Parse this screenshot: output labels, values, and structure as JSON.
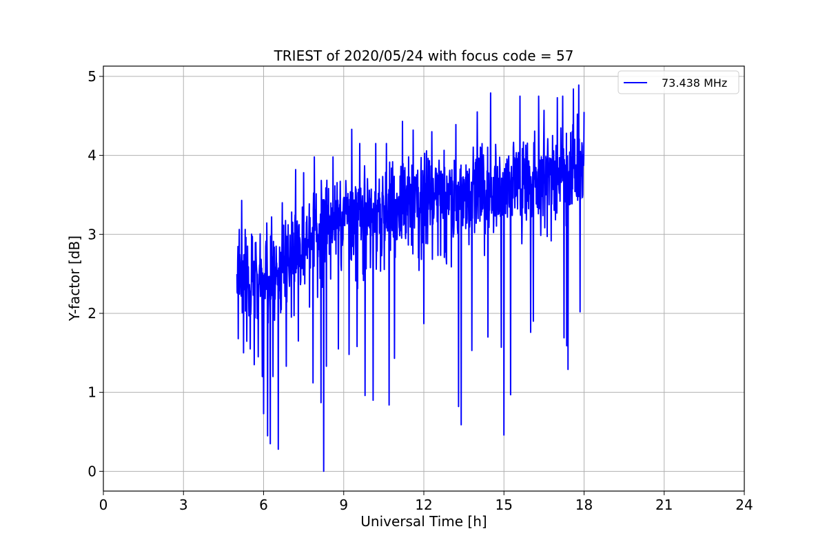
{
  "chart_data": {
    "type": "line",
    "title": "TRIEST of 2020/05/24 with focus code = 57",
    "xlabel": "Universal Time [h]",
    "ylabel": "Y-factor [dB]",
    "xlim": [
      0,
      24
    ],
    "ylim": [
      -0.25,
      5.13
    ],
    "xticks": [
      0,
      3,
      6,
      9,
      12,
      15,
      18,
      21,
      24
    ],
    "yticks": [
      0,
      1,
      2,
      3,
      4,
      5
    ],
    "grid": true,
    "legend_position": "top-right",
    "series": [
      {
        "name": "73.438 MHz",
        "color": "#0000ff",
        "x_range": [
          5.0,
          18.0
        ],
        "sample_step_h": 0.01,
        "trend": {
          "x": [
            5.0,
            6.5,
            8.0,
            9.0,
            11.0,
            12.0,
            14.0,
            16.0,
            17.0,
            18.0
          ],
          "y": [
            2.45,
            2.55,
            3.05,
            3.2,
            3.35,
            3.5,
            3.55,
            3.65,
            3.75,
            3.8
          ]
        },
        "noise_amplitude": {
          "x": [
            5.0,
            7.0,
            18.0
          ],
          "y": [
            0.7,
            0.65,
            0.7
          ]
        },
        "peaks": [
          {
            "x": 5.05,
            "y": 3.42
          },
          {
            "x": 5.18,
            "y": 3.43
          },
          {
            "x": 5.5,
            "y": 3.2
          },
          {
            "x": 6.3,
            "y": 3.22
          },
          {
            "x": 6.7,
            "y": 3.4
          },
          {
            "x": 7.2,
            "y": 3.82
          },
          {
            "x": 7.5,
            "y": 3.78
          },
          {
            "x": 7.9,
            "y": 3.98
          },
          {
            "x": 8.6,
            "y": 3.98
          },
          {
            "x": 9.3,
            "y": 4.33
          },
          {
            "x": 9.6,
            "y": 4.15
          },
          {
            "x": 10.2,
            "y": 4.15
          },
          {
            "x": 10.6,
            "y": 4.15
          },
          {
            "x": 11.2,
            "y": 4.43
          },
          {
            "x": 11.6,
            "y": 4.32
          },
          {
            "x": 12.3,
            "y": 4.3
          },
          {
            "x": 13.2,
            "y": 4.39
          },
          {
            "x": 14.0,
            "y": 4.55
          },
          {
            "x": 14.5,
            "y": 4.79
          },
          {
            "x": 14.9,
            "y": 4.4
          },
          {
            "x": 15.6,
            "y": 4.75
          },
          {
            "x": 16.3,
            "y": 4.75
          },
          {
            "x": 16.5,
            "y": 4.57
          },
          {
            "x": 17.0,
            "y": 4.73
          },
          {
            "x": 17.2,
            "y": 4.75
          },
          {
            "x": 17.4,
            "y": 4.79
          },
          {
            "x": 17.6,
            "y": 4.84
          },
          {
            "x": 17.8,
            "y": 4.89
          },
          {
            "x": 18.0,
            "y": 4.55
          }
        ],
        "dips": [
          {
            "x": 5.05,
            "y": 1.68
          },
          {
            "x": 5.25,
            "y": 1.5
          },
          {
            "x": 5.5,
            "y": 1.55
          },
          {
            "x": 5.65,
            "y": 1.35
          },
          {
            "x": 5.8,
            "y": 1.45
          },
          {
            "x": 5.95,
            "y": 1.2
          },
          {
            "x": 6.0,
            "y": 0.73
          },
          {
            "x": 6.15,
            "y": 0.45
          },
          {
            "x": 6.25,
            "y": 0.35
          },
          {
            "x": 6.35,
            "y": 1.2
          },
          {
            "x": 6.55,
            "y": 0.28
          },
          {
            "x": 6.85,
            "y": 1.33
          },
          {
            "x": 7.3,
            "y": 1.65
          },
          {
            "x": 7.85,
            "y": 1.12
          },
          {
            "x": 8.15,
            "y": 0.87
          },
          {
            "x": 8.25,
            "y": 0.0
          },
          {
            "x": 8.35,
            "y": 1.33
          },
          {
            "x": 8.8,
            "y": 1.55
          },
          {
            "x": 9.2,
            "y": 1.48
          },
          {
            "x": 9.5,
            "y": 1.58
          },
          {
            "x": 9.8,
            "y": 0.96
          },
          {
            "x": 10.1,
            "y": 0.9
          },
          {
            "x": 10.7,
            "y": 0.84
          },
          {
            "x": 10.9,
            "y": 1.43
          },
          {
            "x": 12.0,
            "y": 1.87
          },
          {
            "x": 13.3,
            "y": 0.82
          },
          {
            "x": 13.4,
            "y": 0.59
          },
          {
            "x": 13.8,
            "y": 1.53
          },
          {
            "x": 14.4,
            "y": 1.7
          },
          {
            "x": 14.9,
            "y": 1.57
          },
          {
            "x": 15.0,
            "y": 0.46
          },
          {
            "x": 15.25,
            "y": 0.97
          },
          {
            "x": 16.0,
            "y": 1.76
          },
          {
            "x": 16.1,
            "y": 1.9
          },
          {
            "x": 17.25,
            "y": 1.69
          },
          {
            "x": 17.35,
            "y": 1.59
          },
          {
            "x": 17.4,
            "y": 1.29
          },
          {
            "x": 17.85,
            "y": 2.02
          }
        ]
      }
    ]
  }
}
